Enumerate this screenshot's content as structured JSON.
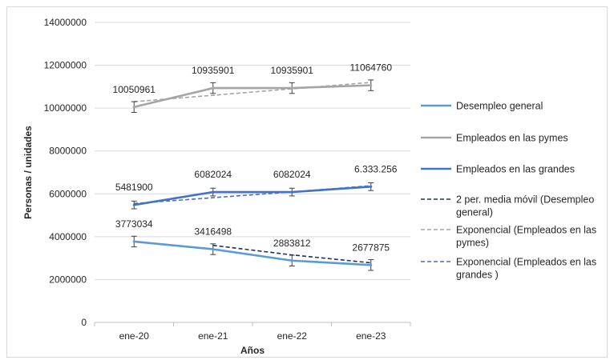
{
  "chart_data": {
    "type": "line",
    "title": "",
    "xlabel": "Años",
    "ylabel": "Personas / unidades",
    "categories": [
      "ene-20",
      "ene-21",
      "ene-22",
      "ene-23"
    ],
    "ylim": [
      0,
      14000000
    ],
    "yticks": [
      0,
      2000000,
      4000000,
      6000000,
      8000000,
      10000000,
      12000000,
      14000000
    ],
    "ytick_labels": [
      "0",
      "2000000",
      "4000000",
      "6000000",
      "8000000",
      "10000000",
      "12000000",
      "14000000"
    ],
    "grid": "horizontal",
    "legend_position": "right",
    "error_bars": true,
    "series": [
      {
        "name": "Desempleo general",
        "color": "#5b9bd5",
        "style": "solid",
        "values": [
          3773034,
          3416498,
          2883812,
          2677875
        ],
        "labels": [
          "3773034",
          "3416498",
          "2883812",
          "2677875"
        ],
        "error": 250000
      },
      {
        "name": "Empleados en las pymes",
        "color": "#a5a5a5",
        "style": "solid",
        "values": [
          10050961,
          10935901,
          10935901,
          11064760
        ],
        "labels": [
          "10050961",
          "10935901",
          "10935901",
          "11064760"
        ],
        "error": 250000
      },
      {
        "name": "Empleados en las grandes",
        "color": "#4472c4",
        "style": "solid",
        "values": [
          5481900,
          6082024,
          6082024,
          6333256
        ],
        "labels": [
          "5481900",
          "6082024",
          "6082024",
          "6.333.256"
        ],
        "error": 180000
      }
    ],
    "trendlines": [
      {
        "name": "2 per. media móvil (Desempleo general)",
        "legend_lines": [
          "2 per. media móvil (Desempleo",
          "general)"
        ],
        "color": "#1f2f6b",
        "style": "dashed",
        "x_index": [
          1,
          2,
          3
        ],
        "values": [
          3595000,
          3150000,
          2780000
        ]
      },
      {
        "name": "Exponencial (Empleados en las pymes)",
        "legend_lines": [
          "Exponencial (Empleados en las",
          "pymes)"
        ],
        "color": "#a5a5a5",
        "style": "dashed",
        "x_index": [
          0,
          1,
          2,
          3
        ],
        "values": [
          10300000,
          10600000,
          10900000,
          11200000
        ]
      },
      {
        "name": "Exponencial (Empleados en las grandes )",
        "legend_lines": [
          "Exponencial (Empleados en las",
          "grandes )"
        ],
        "color": "#4472c4",
        "style": "dashed",
        "x_index": [
          0,
          1,
          2,
          3
        ],
        "values": [
          5550000,
          5820000,
          6090000,
          6380000
        ]
      }
    ]
  }
}
